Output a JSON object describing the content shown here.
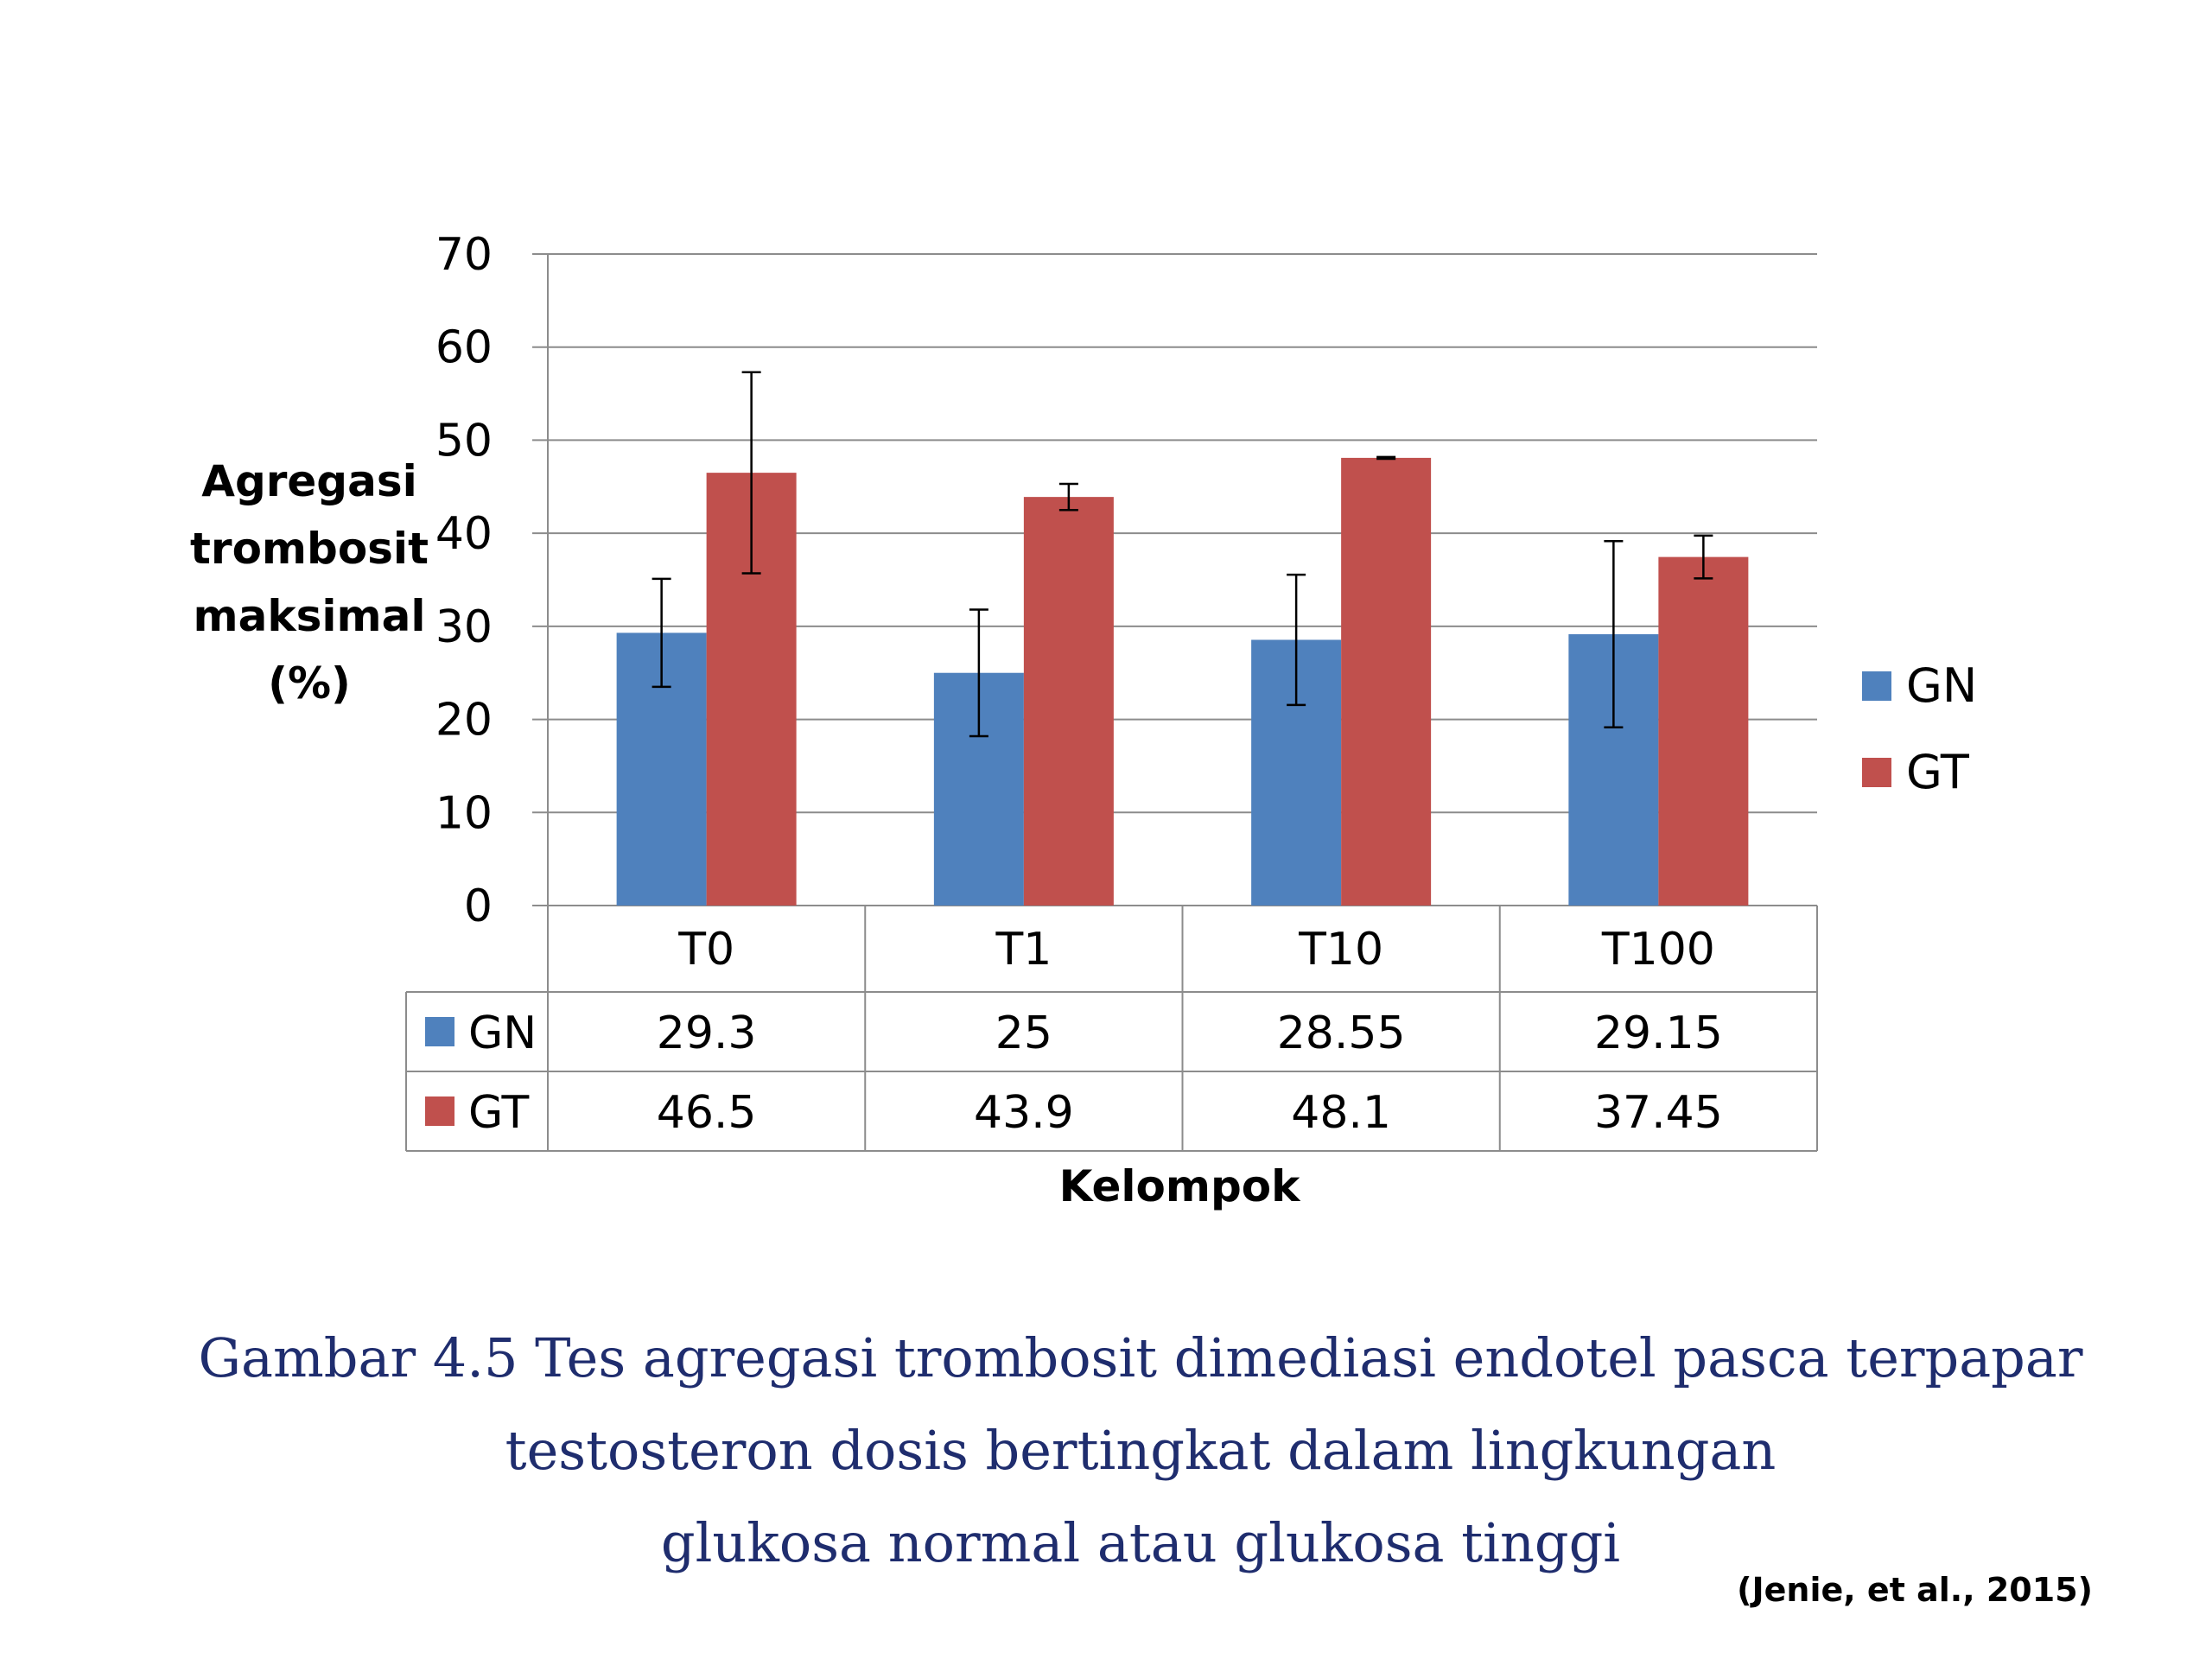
{
  "chart_data": {
    "type": "bar",
    "categories": [
      "T0",
      "T1",
      "T10",
      "T100"
    ],
    "series": [
      {
        "name": "GN",
        "values": [
          29.3,
          25,
          28.55,
          29.15
        ],
        "errors": [
          5.8,
          6.8,
          7.0,
          10.0
        ],
        "color": "#4f81bd"
      },
      {
        "name": "GT",
        "values": [
          46.5,
          43.9,
          48.1,
          37.45
        ],
        "errors": [
          10.8,
          1.4,
          0.1,
          2.3
        ],
        "color": "#c0504d"
      }
    ],
    "table_values": [
      [
        "29.3",
        "25",
        "28.55",
        "29.15"
      ],
      [
        "46.5",
        "43.9",
        "48.1",
        "37.45"
      ]
    ],
    "yticks": [
      "0",
      "10",
      "20",
      "30",
      "40",
      "50",
      "60",
      "70"
    ],
    "ylim": [
      0,
      70
    ],
    "ylabel": [
      "Agregasi",
      "trombosit",
      "maksimal",
      "(%)"
    ],
    "xlabel": "Kelompok",
    "grid": true,
    "legend_position": "right",
    "data_table": true
  },
  "caption": [
    "Gambar 4.5 Tes agregasi trombosit dimediasi endotel pasca terpapar",
    "testosteron dosis bertingkat dalam lingkungan",
    "glukosa normal atau glukosa tinggi"
  ],
  "citation": "(Jenie, et  al., 2015)"
}
